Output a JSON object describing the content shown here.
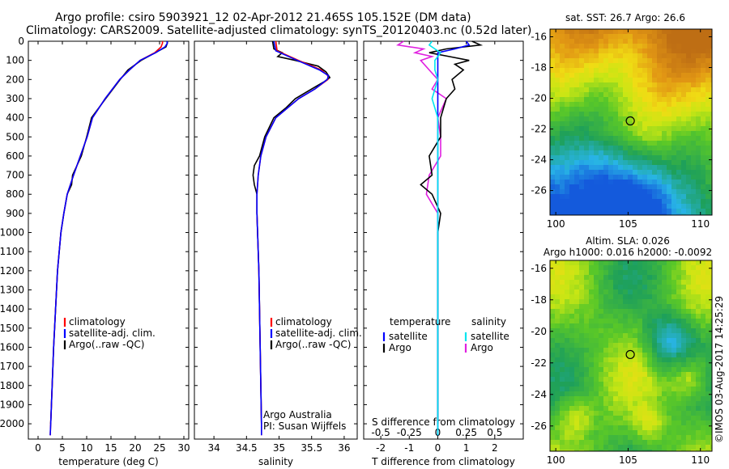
{
  "header": {
    "line1": "Argo profile: csiro 5903921_12 02-Apr-2012 21.465S 105.152E (DM data)",
    "line2": "Climatology: CARS2009. Satellite-adjusted climatology: synTS_20120403.nc (0.52d later)"
  },
  "colors": {
    "climatology": "#ff0000",
    "satellite": "#0000ff",
    "argo": "#000000",
    "temp_sat_diff": "#0000ff",
    "sal_sat_diff": "#00e5ee",
    "sal_argo_diff": "#e020e0"
  },
  "depth_ticks": [
    "0",
    "100",
    "200",
    "300",
    "400",
    "500",
    "600",
    "700",
    "800",
    "900",
    "1000",
    "1100",
    "1200",
    "1300",
    "1400",
    "1500",
    "1600",
    "1700",
    "1800",
    "1900",
    "2000"
  ],
  "chart_data": [
    {
      "type": "line",
      "name": "temperature",
      "xlabel": "temperature (deg C)",
      "ylabel": "",
      "xlim": [
        -2,
        31
      ],
      "ylim": [
        2080,
        0
      ],
      "xticks": [
        "0",
        "5",
        "10",
        "15",
        "20",
        "25",
        "30"
      ],
      "xtick_values": [
        0,
        5,
        10,
        15,
        20,
        25,
        30
      ],
      "legend": [
        "climatology",
        "satellite-adj. clim.",
        "Argo(..raw -QC)"
      ],
      "series": [
        {
          "name": "climatology",
          "depth": [
            0,
            10,
            30,
            60,
            100,
            150,
            200,
            300,
            400,
            500,
            600,
            700,
            800,
            900,
            1000,
            1200,
            1400,
            1600,
            1800,
            2000,
            2060
          ],
          "values": [
            25.6,
            25.6,
            25.3,
            24.0,
            21.0,
            18.8,
            16.8,
            13.8,
            11.2,
            10.1,
            8.7,
            7.3,
            6.0,
            5.3,
            4.7,
            4.0,
            3.6,
            3.2,
            2.9,
            2.6,
            2.5
          ]
        },
        {
          "name": "satellite-adj. clim.",
          "depth": [
            0,
            10,
            30,
            60,
            100,
            150,
            200,
            300,
            400,
            500,
            600,
            700,
            800,
            900,
            1000,
            1200,
            1400,
            1600,
            1800,
            2000,
            2060
          ],
          "values": [
            26.5,
            26.6,
            26.1,
            24.2,
            21.0,
            18.8,
            16.8,
            13.8,
            11.2,
            10.1,
            8.7,
            7.3,
            6.0,
            5.3,
            4.7,
            4.0,
            3.6,
            3.2,
            2.9,
            2.6,
            2.5
          ]
        },
        {
          "name": "Argo(..raw -QC)",
          "depth": [
            0,
            10,
            30,
            60,
            100,
            150,
            200,
            300,
            400,
            500,
            600,
            700,
            750,
            800,
            900,
            1000,
            1200,
            1400,
            1600,
            1800,
            2000
          ],
          "values": [
            26.6,
            26.6,
            26.3,
            24.1,
            21.2,
            18.5,
            16.9,
            13.9,
            11.0,
            10.0,
            8.9,
            7.1,
            6.9,
            6.0,
            5.3,
            4.7,
            4.0,
            3.6,
            3.2,
            2.9,
            2.6
          ]
        }
      ]
    },
    {
      "type": "line",
      "name": "salinity",
      "xlabel": "salinity",
      "ylabel": "",
      "xlim": [
        33.7,
        36.2
      ],
      "ylim": [
        2080,
        0
      ],
      "xticks": [
        "34",
        "34.5",
        "35",
        "35.5",
        "36"
      ],
      "xtick_values": [
        34,
        34.5,
        35,
        35.5,
        36
      ],
      "legend": [
        "climatology",
        "satellite-adj. clim.",
        "Argo(..raw -QC)"
      ],
      "annotation": [
        "Argo Australia",
        "PI: Susan Wijffels"
      ],
      "series": [
        {
          "name": "climatology",
          "depth": [
            0,
            50,
            100,
            150,
            180,
            200,
            250,
            300,
            400,
            500,
            600,
            700,
            800,
            900,
            1000,
            1200,
            1400,
            1600,
            1800,
            2000,
            2060
          ],
          "values": [
            34.95,
            34.97,
            35.3,
            35.65,
            35.75,
            35.75,
            35.55,
            35.3,
            34.95,
            34.8,
            34.72,
            34.68,
            34.66,
            34.66,
            34.67,
            34.69,
            34.7,
            34.71,
            34.72,
            34.73,
            34.73
          ]
        },
        {
          "name": "satellite-adj. clim.",
          "depth": [
            0,
            50,
            100,
            150,
            180,
            200,
            250,
            300,
            400,
            500,
            600,
            700,
            800,
            900,
            1000,
            1200,
            1400,
            1600,
            1800,
            2000,
            2060
          ],
          "values": [
            34.92,
            34.95,
            35.28,
            35.62,
            35.76,
            35.74,
            35.55,
            35.3,
            34.95,
            34.8,
            34.72,
            34.68,
            34.66,
            34.66,
            34.67,
            34.69,
            34.7,
            34.71,
            34.72,
            34.73,
            34.73
          ]
        },
        {
          "name": "Argo(..raw -QC)",
          "depth": [
            0,
            40,
            60,
            80,
            100,
            130,
            160,
            190,
            210,
            250,
            300,
            350,
            400,
            450,
            500,
            600,
            650,
            700,
            750,
            800,
            900,
            1000,
            1200,
            1400,
            1600,
            1800,
            2000
          ],
          "values": [
            34.9,
            34.92,
            35.05,
            34.98,
            35.25,
            35.6,
            35.72,
            35.78,
            35.7,
            35.5,
            35.25,
            35.1,
            34.92,
            34.85,
            34.78,
            34.7,
            34.62,
            34.6,
            34.62,
            34.66,
            34.66,
            34.67,
            34.69,
            34.7,
            34.71,
            34.72,
            34.73
          ]
        }
      ]
    },
    {
      "type": "line",
      "name": "difference",
      "xlabel": "T difference from climatology",
      "xlabel_top": "S difference from climatology",
      "xlim": [
        -2.6,
        3.0
      ],
      "ylim": [
        2080,
        0
      ],
      "xticks": [
        "-2",
        "-1",
        "0",
        "1",
        "2"
      ],
      "xtick_values": [
        -2,
        -1,
        0,
        1,
        2
      ],
      "xticks_top": [
        "-0.5",
        "-0.25",
        "0",
        "0.25",
        "0.5"
      ],
      "xtick_top_values": [
        -2,
        -1,
        0,
        1,
        2
      ],
      "legend_temperature": {
        "title": "temperature",
        "items": [
          "satellite",
          "Argo"
        ]
      },
      "legend_salinity": {
        "title": "salinity",
        "items": [
          "satellite",
          "Argo"
        ]
      },
      "series": [
        {
          "name": "T satellite",
          "depth": [
            0,
            20,
            40,
            60,
            80,
            100,
            150,
            200,
            300,
            400,
            500,
            2060
          ],
          "values": [
            1.0,
            1.1,
            0.6,
            0.0,
            0.0,
            0.0,
            0.0,
            0.0,
            0.0,
            0.0,
            0.0,
            0.0
          ]
        },
        {
          "name": "T Argo",
          "depth": [
            0,
            20,
            40,
            60,
            80,
            100,
            120,
            150,
            200,
            250,
            300,
            350,
            400,
            500,
            600,
            700,
            750,
            800,
            900,
            1000,
            1200,
            1500,
            2000
          ],
          "values": [
            1.2,
            1.5,
            0.3,
            -0.3,
            0.4,
            1.1,
            0.6,
            0.9,
            0.5,
            0.6,
            0.3,
            0.2,
            0.1,
            0.1,
            -0.3,
            -0.2,
            -0.6,
            -0.2,
            0.1,
            0.0,
            0.0,
            0.0,
            0.0
          ]
        },
        {
          "name": "S satellite",
          "depth": [
            0,
            20,
            40,
            60,
            80,
            100,
            150,
            200,
            300,
            400,
            500,
            2060
          ],
          "values": [
            -0.2,
            -0.3,
            -0.1,
            0.1,
            0.0,
            -0.1,
            -0.1,
            0.0,
            -0.2,
            0.0,
            0.0,
            0.0
          ]
        },
        {
          "name": "S Argo",
          "depth": [
            0,
            20,
            40,
            60,
            80,
            100,
            150,
            200,
            250,
            300,
            400,
            500,
            600,
            700,
            800,
            900,
            1000,
            2000
          ],
          "values": [
            -1.2,
            -1.4,
            -0.5,
            -0.8,
            -0.2,
            -0.6,
            -0.3,
            0.0,
            -0.2,
            0.3,
            0.0,
            0.1,
            0.1,
            -0.3,
            -0.4,
            0.0,
            0.0,
            0.0
          ]
        }
      ]
    },
    {
      "type": "heatmap",
      "name": "sst-map",
      "title": "sat. SST: 26.7  Argo: 26.6",
      "xticks": [
        "100",
        "105",
        "110"
      ],
      "xtick_values": [
        100,
        105,
        110
      ],
      "yticks": [
        "-16",
        "-18",
        "-20",
        "-22",
        "-24",
        "-26"
      ],
      "ytick_values": [
        -16,
        -18,
        -20,
        -22,
        -24,
        -26
      ],
      "xlim": [
        99.6,
        110.8
      ],
      "ylim": [
        -27.6,
        -15.5
      ],
      "marker": {
        "lon": 105.15,
        "lat": -21.47
      }
    },
    {
      "type": "heatmap",
      "name": "sla-map",
      "title": "Altim. SLA: 0.026",
      "subtitle": "Argo h1000: 0.016  h2000: -0.0092",
      "xticks": [
        "100",
        "105",
        "110"
      ],
      "xtick_values": [
        100,
        105,
        110
      ],
      "yticks": [
        "-16",
        "-18",
        "-20",
        "-22",
        "-24",
        "-26"
      ],
      "ytick_values": [
        -16,
        -18,
        -20,
        -22,
        -24,
        -26
      ],
      "xlim": [
        99.6,
        110.8
      ],
      "ylim": [
        -27.6,
        -15.5
      ],
      "marker": {
        "lon": 105.15,
        "lat": -21.47
      }
    }
  ],
  "footer": {
    "credit": "©IMOS 03-Aug-2017 14:25:29"
  }
}
